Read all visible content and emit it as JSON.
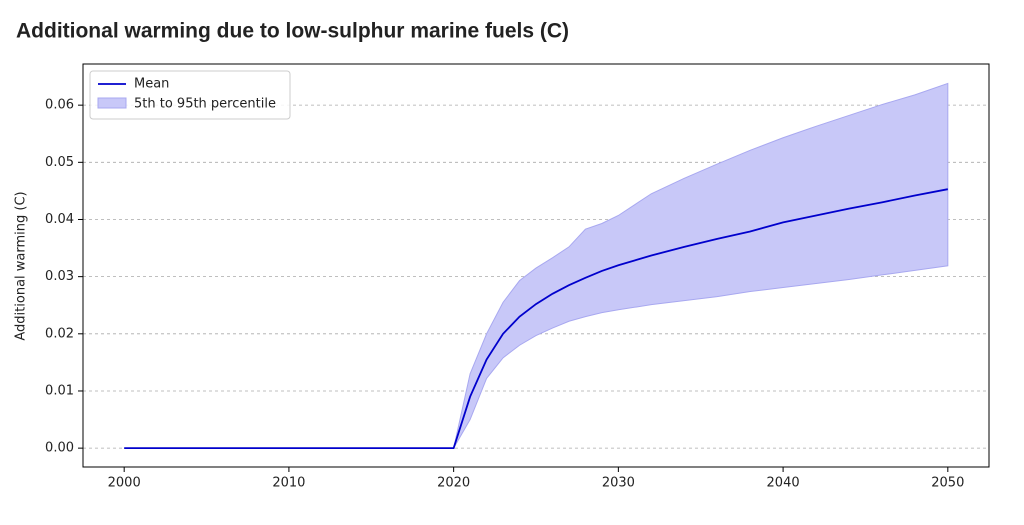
{
  "chart_data": {
    "type": "line",
    "title": "Additional warming due to low-sulphur marine fuels (C)",
    "y_label": "Additional warming (C)",
    "x": [
      2000,
      2020,
      2021,
      2022,
      2023,
      2024,
      2025,
      2026,
      2027,
      2028,
      2029,
      2030,
      2032,
      2034,
      2036,
      2038,
      2040,
      2042,
      2044,
      2046,
      2048,
      2050
    ],
    "series": [
      {
        "name": "Mean",
        "color": "#0000cc",
        "values": [
          0,
          0,
          0.009,
          0.0155,
          0.02,
          0.023,
          0.0252,
          0.027,
          0.0285,
          0.0298,
          0.031,
          0.032,
          0.0337,
          0.0352,
          0.0366,
          0.0379,
          0.0395,
          0.0407,
          0.0419,
          0.043,
          0.0442,
          0.0453
        ]
      }
    ],
    "band": {
      "name": "5th to 95th percentile",
      "color": "#c8c8f8",
      "edge_color": "#a8a8f0",
      "upper": [
        0,
        0,
        0.013,
        0.02,
        0.0255,
        0.0293,
        0.0315,
        0.0333,
        0.0352,
        0.0383,
        0.0393,
        0.0407,
        0.0445,
        0.0472,
        0.0497,
        0.0521,
        0.0543,
        0.0563,
        0.0582,
        0.0601,
        0.0618,
        0.0638
      ],
      "lower": [
        0,
        0,
        0.005,
        0.0122,
        0.0158,
        0.018,
        0.0197,
        0.021,
        0.0222,
        0.023,
        0.0237,
        0.0242,
        0.0251,
        0.0258,
        0.0265,
        0.0274,
        0.0281,
        0.0288,
        0.0295,
        0.0303,
        0.0311,
        0.0319
      ]
    },
    "xlim": [
      1997.5,
      2052.5
    ],
    "xticks": [
      2000,
      2010,
      2020,
      2030,
      2040,
      2050
    ],
    "ylim": [
      -0.0033,
      0.0672
    ],
    "yticks": [
      {
        "value": 0,
        "label": "0.00"
      },
      0.01,
      0.02,
      0.03,
      0.04,
      0.05,
      0.06
    ],
    "grid": true,
    "legend": "upper left"
  }
}
